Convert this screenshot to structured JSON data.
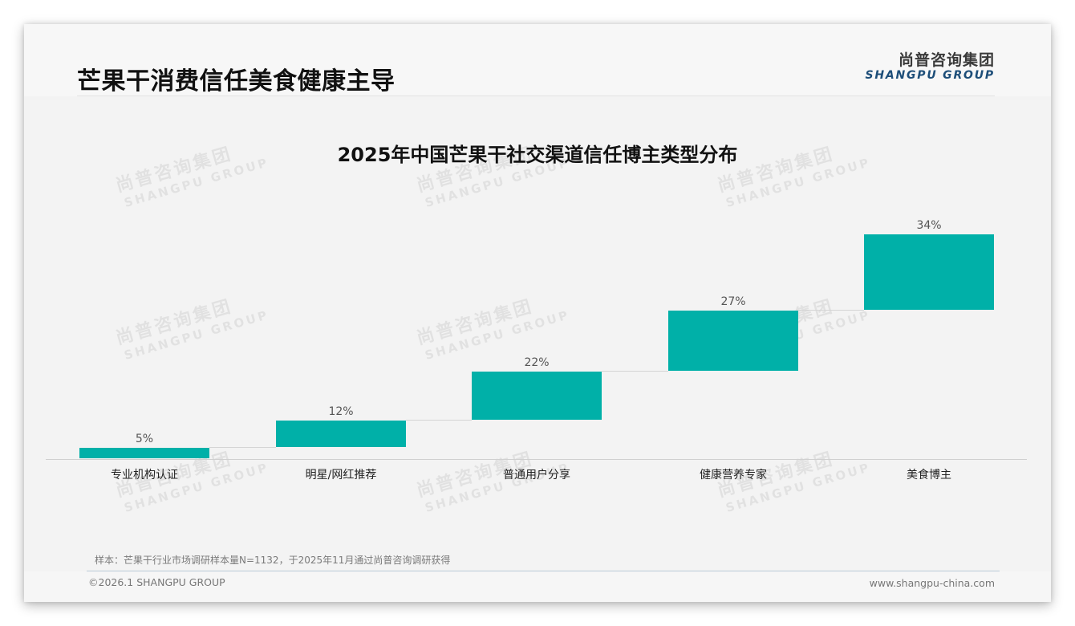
{
  "header": {
    "title": "芒果干消费信任美食健康主导",
    "logo_cn": "尚普咨询集团",
    "logo_en": "SHANGPU GROUP"
  },
  "watermark": {
    "cn": "尚普咨询集团",
    "en": "SHANGPU GROUP"
  },
  "chart_data": {
    "type": "bar",
    "subtype": "waterfall",
    "title": "2025年中国芒果干社交渠道信任博主类型分布",
    "categories": [
      "专业机构认证",
      "明星/网红推荐",
      "普通用户分享",
      "健康营养专家",
      "美食博主"
    ],
    "values": [
      5,
      12,
      22,
      27,
      34
    ],
    "labels": [
      "5%",
      "12%",
      "22%",
      "27%",
      "34%"
    ],
    "unit": "%",
    "xlabel": "",
    "ylabel": "",
    "ylim": [
      0,
      100
    ],
    "grid": false,
    "legend": null,
    "bar_color": "#00b0a8",
    "note": "Waterfall layout: each bar floats on top of the cumulative sum of previous bars, joined by thin connector lines."
  },
  "footer": {
    "note": "样本：芒果干行业市场调研样本量N=1132，于2025年11月通过尚普咨询调研获得",
    "copyright": "©2026.1 SHANGPU GROUP",
    "website": "www.shangpu-china.com"
  }
}
